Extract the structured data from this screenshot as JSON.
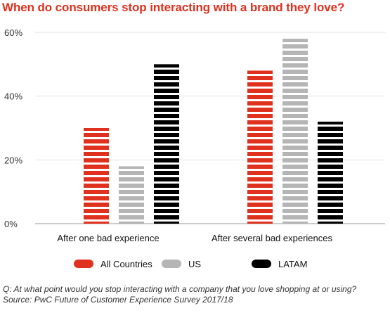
{
  "chart_data": {
    "type": "bar",
    "title": "When do consumers stop interacting with a brand they love?",
    "categories": [
      "After one bad experience",
      "After several bad experiences"
    ],
    "series": [
      {
        "name": "All Countries",
        "values": [
          30,
          48
        ],
        "color": "#e0301e"
      },
      {
        "name": "US",
        "values": [
          18,
          58
        ],
        "color": "#b5b5b5"
      },
      {
        "name": "LATAM",
        "values": [
          50,
          32
        ],
        "color": "#000000"
      }
    ],
    "ylim": [
      0,
      60
    ],
    "yticks": [
      0,
      20,
      40,
      60
    ],
    "ytick_labels": [
      "0%",
      "20%",
      "40%",
      "60%"
    ],
    "xlabel": "",
    "ylabel": "",
    "grid": "horizontal",
    "legend_position": "bottom"
  },
  "footnotes": {
    "question": "Q: At what point would you stop interacting with a company that you love shopping at or using?",
    "source": "Source: PwC Future of Customer Experience Survey 2017/18"
  }
}
